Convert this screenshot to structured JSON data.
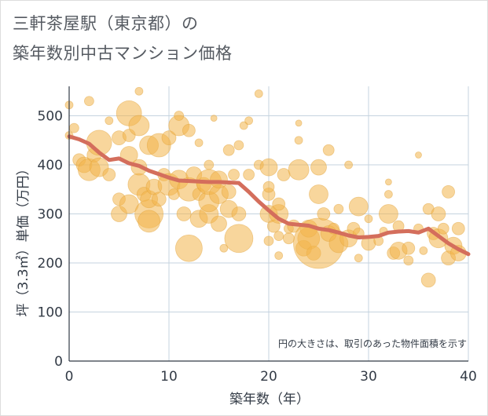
{
  "title_line1": "三軒茶屋駅（東京都）の",
  "title_line2": "築年数別中古マンション価格",
  "chart_data": {
    "type": "scatter",
    "xlabel": "築年数（年）",
    "ylabel": "坪（3.3㎡）単価（万円）",
    "xlim": [
      0,
      40
    ],
    "ylim": [
      0,
      560
    ],
    "x_ticks": [
      0,
      10,
      20,
      30,
      40
    ],
    "y_ticks": [
      0,
      100,
      200,
      300,
      400,
      500
    ],
    "grid": true,
    "annotation": "円の大きさは、取引のあった物件面積を示す",
    "bubble_color": "#f2b54a",
    "trend_color": "#d46e5c",
    "trend_line": {
      "name": "",
      "x": [
        0,
        1,
        2,
        3,
        4,
        5,
        6,
        7,
        8,
        9,
        10,
        11,
        12,
        13,
        14,
        15,
        16,
        17,
        18,
        19,
        20,
        21,
        22,
        23,
        24,
        25,
        26,
        27,
        28,
        29,
        30,
        31,
        32,
        33,
        34,
        35,
        36,
        37,
        38,
        39,
        40
      ],
      "y": [
        458,
        452,
        443,
        425,
        410,
        413,
        403,
        398,
        388,
        381,
        374,
        368,
        367,
        366,
        365,
        365,
        364,
        363,
        345,
        325,
        307,
        290,
        280,
        278,
        276,
        270,
        267,
        262,
        256,
        252,
        253,
        255,
        262,
        264,
        265,
        262,
        270,
        255,
        240,
        228,
        218
      ]
    },
    "bubbles": [
      {
        "x": 0,
        "y": 522,
        "r": 5
      },
      {
        "x": 0,
        "y": 460,
        "r": 5
      },
      {
        "x": 0.5,
        "y": 475,
        "r": 6
      },
      {
        "x": 1,
        "y": 410,
        "r": 8
      },
      {
        "x": 1.5,
        "y": 400,
        "r": 10
      },
      {
        "x": 2,
        "y": 390,
        "r": 14
      },
      {
        "x": 2,
        "y": 530,
        "r": 6
      },
      {
        "x": 2.5,
        "y": 420,
        "r": 9
      },
      {
        "x": 3,
        "y": 395,
        "r": 12
      },
      {
        "x": 3,
        "y": 445,
        "r": 16
      },
      {
        "x": 4,
        "y": 380,
        "r": 8
      },
      {
        "x": 4,
        "y": 490,
        "r": 5
      },
      {
        "x": 5,
        "y": 300,
        "r": 10
      },
      {
        "x": 5,
        "y": 330,
        "r": 8
      },
      {
        "x": 5,
        "y": 455,
        "r": 9
      },
      {
        "x": 6,
        "y": 320,
        "r": 12
      },
      {
        "x": 6,
        "y": 420,
        "r": 11
      },
      {
        "x": 6,
        "y": 460,
        "r": 8
      },
      {
        "x": 6,
        "y": 505,
        "r": 16
      },
      {
        "x": 7,
        "y": 360,
        "r": 14
      },
      {
        "x": 7,
        "y": 480,
        "r": 13
      },
      {
        "x": 7,
        "y": 395,
        "r": 10
      },
      {
        "x": 7,
        "y": 550,
        "r": 5
      },
      {
        "x": 7.5,
        "y": 340,
        "r": 9
      },
      {
        "x": 8,
        "y": 300,
        "r": 18
      },
      {
        "x": 8,
        "y": 285,
        "r": 14
      },
      {
        "x": 8,
        "y": 330,
        "r": 11
      },
      {
        "x": 8,
        "y": 440,
        "r": 12
      },
      {
        "x": 8.5,
        "y": 355,
        "r": 10
      },
      {
        "x": 9,
        "y": 330,
        "r": 9
      },
      {
        "x": 9,
        "y": 440,
        "r": 15
      },
      {
        "x": 9.5,
        "y": 380,
        "r": 8
      },
      {
        "x": 10,
        "y": 360,
        "r": 14
      },
      {
        "x": 10,
        "y": 455,
        "r": 9
      },
      {
        "x": 10.5,
        "y": 340,
        "r": 7
      },
      {
        "x": 11,
        "y": 370,
        "r": 12
      },
      {
        "x": 11,
        "y": 480,
        "r": 13
      },
      {
        "x": 11,
        "y": 500,
        "r": 6
      },
      {
        "x": 11.5,
        "y": 300,
        "r": 9
      },
      {
        "x": 12,
        "y": 230,
        "r": 17
      },
      {
        "x": 12,
        "y": 350,
        "r": 15
      },
      {
        "x": 12,
        "y": 470,
        "r": 8
      },
      {
        "x": 12.5,
        "y": 380,
        "r": 10
      },
      {
        "x": 13,
        "y": 290,
        "r": 11
      },
      {
        "x": 13,
        "y": 340,
        "r": 8
      },
      {
        "x": 13,
        "y": 445,
        "r": 5
      },
      {
        "x": 13.5,
        "y": 360,
        "r": 9
      },
      {
        "x": 14,
        "y": 300,
        "r": 12
      },
      {
        "x": 14,
        "y": 325,
        "r": 13
      },
      {
        "x": 14,
        "y": 365,
        "r": 16
      },
      {
        "x": 14,
        "y": 400,
        "r": 6
      },
      {
        "x": 14.5,
        "y": 495,
        "r": 4
      },
      {
        "x": 15,
        "y": 280,
        "r": 10
      },
      {
        "x": 15,
        "y": 340,
        "r": 12
      },
      {
        "x": 15,
        "y": 370,
        "r": 11
      },
      {
        "x": 15.5,
        "y": 230,
        "r": 5
      },
      {
        "x": 16,
        "y": 310,
        "r": 11
      },
      {
        "x": 16,
        "y": 345,
        "r": 9
      },
      {
        "x": 16,
        "y": 430,
        "r": 7
      },
      {
        "x": 16.5,
        "y": 380,
        "r": 7
      },
      {
        "x": 17,
        "y": 250,
        "r": 18
      },
      {
        "x": 17,
        "y": 300,
        "r": 9
      },
      {
        "x": 17,
        "y": 440,
        "r": 6
      },
      {
        "x": 17.5,
        "y": 480,
        "r": 5
      },
      {
        "x": 18,
        "y": 380,
        "r": 7
      },
      {
        "x": 18,
        "y": 490,
        "r": 5
      },
      {
        "x": 19,
        "y": 400,
        "r": 6
      },
      {
        "x": 19,
        "y": 545,
        "r": 5
      },
      {
        "x": 20,
        "y": 245,
        "r": 6
      },
      {
        "x": 20,
        "y": 300,
        "r": 11
      },
      {
        "x": 20,
        "y": 340,
        "r": 8
      },
      {
        "x": 20,
        "y": 395,
        "r": 11
      },
      {
        "x": 20,
        "y": 355,
        "r": 7
      },
      {
        "x": 20.5,
        "y": 275,
        "r": 8
      },
      {
        "x": 21,
        "y": 300,
        "r": 12
      },
      {
        "x": 21,
        "y": 320,
        "r": 8
      },
      {
        "x": 21,
        "y": 255,
        "r": 6
      },
      {
        "x": 21,
        "y": 215,
        "r": 5
      },
      {
        "x": 21.5,
        "y": 380,
        "r": 8
      },
      {
        "x": 22,
        "y": 250,
        "r": 7
      },
      {
        "x": 22,
        "y": 270,
        "r": 6
      },
      {
        "x": 22.5,
        "y": 275,
        "r": 8
      },
      {
        "x": 23,
        "y": 390,
        "r": 13
      },
      {
        "x": 23,
        "y": 450,
        "r": 5
      },
      {
        "x": 23,
        "y": 485,
        "r": 4
      },
      {
        "x": 23.5,
        "y": 230,
        "r": 10
      },
      {
        "x": 24,
        "y": 250,
        "r": 14
      },
      {
        "x": 24,
        "y": 270,
        "r": 11
      },
      {
        "x": 24.5,
        "y": 220,
        "r": 9
      },
      {
        "x": 25,
        "y": 240,
        "r": 32
      },
      {
        "x": 25,
        "y": 395,
        "r": 10
      },
      {
        "x": 25,
        "y": 340,
        "r": 12
      },
      {
        "x": 25.5,
        "y": 300,
        "r": 8
      },
      {
        "x": 26,
        "y": 430,
        "r": 7
      },
      {
        "x": 26,
        "y": 260,
        "r": 10
      },
      {
        "x": 26.5,
        "y": 270,
        "r": 7
      },
      {
        "x": 27,
        "y": 240,
        "r": 12
      },
      {
        "x": 27,
        "y": 310,
        "r": 6
      },
      {
        "x": 28,
        "y": 250,
        "r": 11
      },
      {
        "x": 28,
        "y": 400,
        "r": 5
      },
      {
        "x": 28.5,
        "y": 270,
        "r": 8
      },
      {
        "x": 29,
        "y": 315,
        "r": 12
      },
      {
        "x": 29,
        "y": 210,
        "r": 5
      },
      {
        "x": 29,
        "y": 260,
        "r": 7
      },
      {
        "x": 30,
        "y": 240,
        "r": 9
      },
      {
        "x": 30,
        "y": 290,
        "r": 5
      },
      {
        "x": 31,
        "y": 245,
        "r": 6
      },
      {
        "x": 31.5,
        "y": 265,
        "r": 5
      },
      {
        "x": 32,
        "y": 300,
        "r": 12
      },
      {
        "x": 32,
        "y": 340,
        "r": 5
      },
      {
        "x": 32,
        "y": 365,
        "r": 4
      },
      {
        "x": 32.5,
        "y": 220,
        "r": 8
      },
      {
        "x": 33,
        "y": 225,
        "r": 11
      },
      {
        "x": 33,
        "y": 275,
        "r": 7
      },
      {
        "x": 34,
        "y": 205,
        "r": 6
      },
      {
        "x": 34,
        "y": 230,
        "r": 8
      },
      {
        "x": 35,
        "y": 420,
        "r": 4
      },
      {
        "x": 35,
        "y": 270,
        "r": 6
      },
      {
        "x": 35.5,
        "y": 225,
        "r": 5
      },
      {
        "x": 36,
        "y": 165,
        "r": 9
      },
      {
        "x": 36,
        "y": 310,
        "r": 7
      },
      {
        "x": 36.5,
        "y": 260,
        "r": 8
      },
      {
        "x": 37,
        "y": 250,
        "r": 12
      },
      {
        "x": 37,
        "y": 300,
        "r": 9
      },
      {
        "x": 37.5,
        "y": 270,
        "r": 7
      },
      {
        "x": 38,
        "y": 210,
        "r": 9
      },
      {
        "x": 38,
        "y": 345,
        "r": 8
      },
      {
        "x": 38.5,
        "y": 235,
        "r": 11
      },
      {
        "x": 39,
        "y": 220,
        "r": 10
      },
      {
        "x": 39,
        "y": 270,
        "r": 8
      }
    ]
  }
}
